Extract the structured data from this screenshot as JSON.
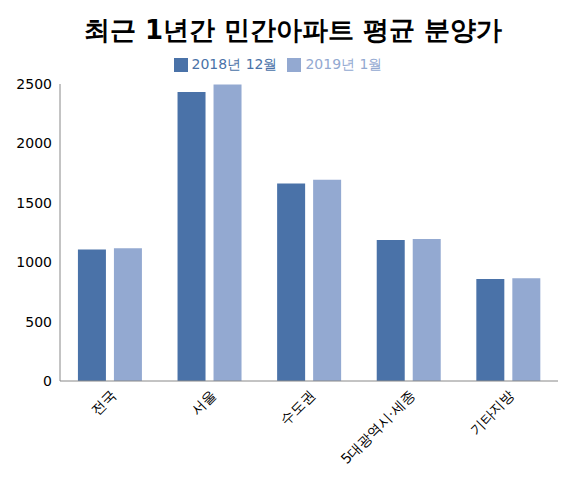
{
  "chart_data": {
    "type": "bar",
    "title": "최근 1년간 민간아파트 평균 분양가",
    "categories": [
      "전국",
      "서울",
      "수도권",
      "5대광역시·세종",
      "기타지방"
    ],
    "series": [
      {
        "name": "2018년 12월",
        "color": "#4a72a8",
        "values": [
          1107,
          2433,
          1663,
          1186,
          858
        ]
      },
      {
        "name": "2019년 1월",
        "color": "#93a9d1",
        "values": [
          1117,
          2496,
          1693,
          1195,
          865
        ]
      }
    ],
    "ylim": [
      0,
      2500
    ],
    "yticks": [
      0,
      500,
      1000,
      1500,
      2000,
      2500
    ],
    "grid": false,
    "legend": "top"
  }
}
